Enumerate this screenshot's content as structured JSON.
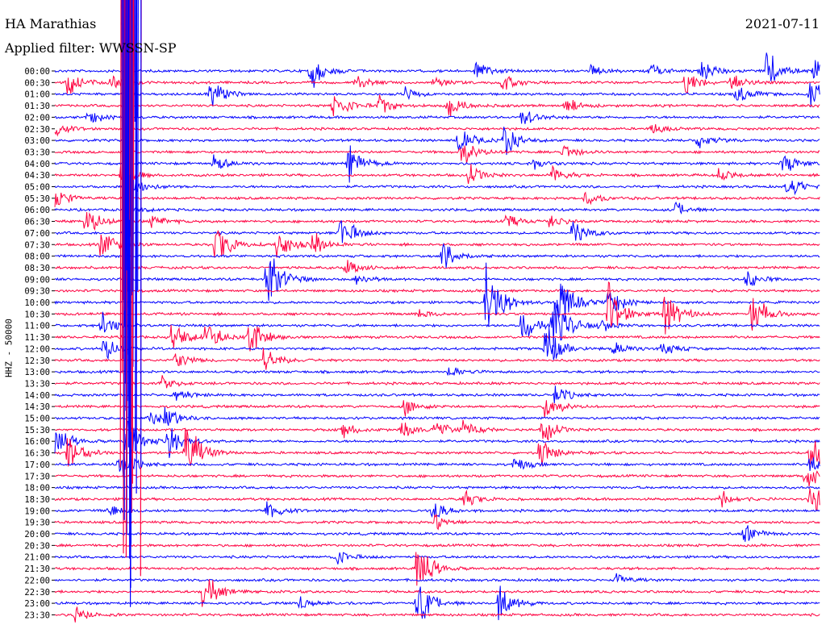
{
  "header": {
    "station": "HA Marathias",
    "filter": "Applied filter: WWSSN-SP",
    "date": "2021-07-11"
  },
  "axis": {
    "ylabel": "HHZ - 50000"
  },
  "colors": {
    "blue": "#0000ff",
    "red": "#ff0040",
    "axis": "#000000",
    "background": "#ffffff"
  },
  "chart_data": {
    "type": "line",
    "title": "HA Marathias",
    "subtitle": "Applied filter: WWSSN-SP",
    "date": "2021-07-11",
    "ylabel": "HHZ - 50000",
    "rows": [
      "00:00",
      "00:30",
      "01:00",
      "01:30",
      "02:00",
      "02:30",
      "03:00",
      "03:30",
      "04:00",
      "04:30",
      "05:00",
      "05:30",
      "06:00",
      "06:30",
      "07:00",
      "07:30",
      "08:00",
      "08:30",
      "09:00",
      "09:30",
      "10:00",
      "10:30",
      "11:00",
      "11:30",
      "12:00",
      "12:30",
      "13:00",
      "13:30",
      "14:00",
      "14:30",
      "15:00",
      "15:30",
      "16:00",
      "16:30",
      "17:00",
      "17:30",
      "18:00",
      "18:30",
      "19:00",
      "19:30",
      "20:00",
      "20:30",
      "21:00",
      "21:30",
      "22:00",
      "22:30",
      "23:00",
      "23:30"
    ],
    "minutes_per_row": 30,
    "row_colors": [
      "blue",
      "red"
    ],
    "events": [
      {
        "row": 0,
        "minute": 10,
        "amp": 30
      },
      {
        "row": 0,
        "minute": 16.5,
        "amp": 14
      },
      {
        "row": 0,
        "minute": 21,
        "amp": 9
      },
      {
        "row": 0,
        "minute": 25.3,
        "amp": 22
      },
      {
        "row": 0,
        "minute": 27.9,
        "amp": 30
      },
      {
        "row": 0,
        "minute": 23.3,
        "amp": 10
      },
      {
        "row": 0,
        "minute": 29.7,
        "amp": 20
      },
      {
        "row": 1,
        "minute": 0.5,
        "amp": 20
      },
      {
        "row": 1,
        "minute": 2.2,
        "amp": 8
      },
      {
        "row": 1,
        "minute": 11.8,
        "amp": 10
      },
      {
        "row": 1,
        "minute": 14.8,
        "amp": 9
      },
      {
        "row": 1,
        "minute": 17.5,
        "amp": 14
      },
      {
        "row": 1,
        "minute": 24.7,
        "amp": 16
      },
      {
        "row": 1,
        "minute": 26.5,
        "amp": 12
      },
      {
        "row": 2,
        "minute": 6.1,
        "amp": 22
      },
      {
        "row": 2,
        "minute": 13.7,
        "amp": 10
      },
      {
        "row": 2,
        "minute": 26.7,
        "amp": 20
      },
      {
        "row": 2,
        "minute": 29.6,
        "amp": 28
      },
      {
        "row": 3,
        "minute": 10.9,
        "amp": 25
      },
      {
        "row": 3,
        "minute": 12.7,
        "amp": 14
      },
      {
        "row": 3,
        "minute": 15.4,
        "amp": 18
      },
      {
        "row": 3,
        "minute": 20,
        "amp": 12
      },
      {
        "row": 4,
        "minute": 1.3,
        "amp": 12
      },
      {
        "row": 4,
        "minute": 18.3,
        "amp": 14
      },
      {
        "row": 5,
        "minute": 0,
        "amp": 10
      },
      {
        "row": 5,
        "minute": 23.4,
        "amp": 8
      },
      {
        "row": 6,
        "minute": 15.8,
        "amp": 20
      },
      {
        "row": 6,
        "minute": 17.6,
        "amp": 25
      },
      {
        "row": 6,
        "minute": 25.2,
        "amp": 12
      },
      {
        "row": 7,
        "minute": 15.9,
        "amp": 22
      },
      {
        "row": 7,
        "minute": 19.9,
        "amp": 14
      },
      {
        "row": 8,
        "minute": 6.2,
        "amp": 14
      },
      {
        "row": 8,
        "minute": 11.5,
        "amp": 28
      },
      {
        "row": 8,
        "minute": 18.8,
        "amp": 10
      },
      {
        "row": 8,
        "minute": 28.5,
        "amp": 20
      },
      {
        "row": 9,
        "minute": 2.6,
        "amp": 16
      },
      {
        "row": 9,
        "minute": 16.2,
        "amp": 18
      },
      {
        "row": 9,
        "minute": 19.5,
        "amp": 12
      },
      {
        "row": 9,
        "minute": 26,
        "amp": 10
      },
      {
        "row": 10,
        "minute": 2.8,
        "amp": 26
      },
      {
        "row": 10,
        "minute": 28.7,
        "amp": 20
      },
      {
        "row": 11,
        "minute": 0,
        "amp": 15
      },
      {
        "row": 11,
        "minute": 20.8,
        "amp": 12
      },
      {
        "row": 12,
        "minute": 2.8,
        "amp": 10
      },
      {
        "row": 12,
        "minute": 24.3,
        "amp": 12
      },
      {
        "row": 13,
        "minute": 1.2,
        "amp": 24
      },
      {
        "row": 13,
        "minute": 3.8,
        "amp": 10
      },
      {
        "row": 13,
        "minute": 17.7,
        "amp": 10
      },
      {
        "row": 13,
        "minute": 19.4,
        "amp": 12
      },
      {
        "row": 14,
        "minute": 11.2,
        "amp": 28
      },
      {
        "row": 14,
        "minute": 20.3,
        "amp": 22
      },
      {
        "row": 15,
        "minute": 1.8,
        "amp": 30
      },
      {
        "row": 15,
        "minute": 6.3,
        "amp": 35
      },
      {
        "row": 15,
        "minute": 8.7,
        "amp": 26
      },
      {
        "row": 15,
        "minute": 10.1,
        "amp": 20
      },
      {
        "row": 16,
        "minute": 15.2,
        "amp": 28
      },
      {
        "row": 17,
        "minute": 11.4,
        "amp": 12
      },
      {
        "row": 18,
        "minute": 8.3,
        "amp": 60
      },
      {
        "row": 18,
        "minute": 11.8,
        "amp": 10
      },
      {
        "row": 18,
        "minute": 27.1,
        "amp": 14
      },
      {
        "row": 20,
        "minute": 16.9,
        "amp": 80
      },
      {
        "row": 20,
        "minute": 19.7,
        "amp": 50
      },
      {
        "row": 20,
        "minute": 21.7,
        "amp": 25
      },
      {
        "row": 21,
        "minute": 14.2,
        "amp": 8
      },
      {
        "row": 21,
        "minute": 21.7,
        "amp": 45
      },
      {
        "row": 21,
        "minute": 23.9,
        "amp": 40
      },
      {
        "row": 21,
        "minute": 27.3,
        "amp": 35
      },
      {
        "row": 22,
        "minute": 1.8,
        "amp": 20
      },
      {
        "row": 22,
        "minute": 18.3,
        "amp": 25
      },
      {
        "row": 22,
        "minute": 19.5,
        "amp": 55
      },
      {
        "row": 22,
        "minute": 21.3,
        "amp": 12
      },
      {
        "row": 23,
        "minute": 4.6,
        "amp": 30
      },
      {
        "row": 23,
        "minute": 5.9,
        "amp": 26
      },
      {
        "row": 23,
        "minute": 7.6,
        "amp": 30
      },
      {
        "row": 24,
        "minute": 1.9,
        "amp": 20
      },
      {
        "row": 24,
        "minute": 19.2,
        "amp": 40
      },
      {
        "row": 24,
        "minute": 21.9,
        "amp": 12
      },
      {
        "row": 24,
        "minute": 23.8,
        "amp": 10
      },
      {
        "row": 25,
        "minute": 4.7,
        "amp": 15
      },
      {
        "row": 25,
        "minute": 8.2,
        "amp": 22
      },
      {
        "row": 26,
        "minute": 15.4,
        "amp": 10
      },
      {
        "row": 27,
        "minute": 4.2,
        "amp": 10
      },
      {
        "row": 28,
        "minute": 4.7,
        "amp": 10
      },
      {
        "row": 28,
        "minute": 19.6,
        "amp": 14
      },
      {
        "row": 29,
        "minute": 13.7,
        "amp": 14
      },
      {
        "row": 29,
        "minute": 19.2,
        "amp": 20
      },
      {
        "row": 30,
        "minute": 4.3,
        "amp": 20
      },
      {
        "row": 30,
        "minute": 3.7,
        "amp": 16
      },
      {
        "row": 31,
        "minute": 11.3,
        "amp": 12
      },
      {
        "row": 31,
        "minute": 13.6,
        "amp": 12
      },
      {
        "row": 31,
        "minute": 14.9,
        "amp": 14
      },
      {
        "row": 31,
        "minute": 16,
        "amp": 12
      },
      {
        "row": 31,
        "minute": 19.1,
        "amp": 20
      },
      {
        "row": 32,
        "minute": 0,
        "amp": 28
      },
      {
        "row": 32,
        "minute": 2.8,
        "amp": 35
      },
      {
        "row": 32,
        "minute": 4.4,
        "amp": 30
      },
      {
        "row": 33,
        "minute": 0.5,
        "amp": 30
      },
      {
        "row": 33,
        "minute": 5.1,
        "amp": 55
      },
      {
        "row": 33,
        "minute": 19,
        "amp": 22
      },
      {
        "row": 33,
        "minute": 29.6,
        "amp": 35
      },
      {
        "row": 34,
        "minute": 2.5,
        "amp": 26
      },
      {
        "row": 34,
        "minute": 18,
        "amp": 12
      },
      {
        "row": 34,
        "minute": 29.6,
        "amp": 15
      },
      {
        "row": 35,
        "minute": 29.4,
        "amp": 20
      },
      {
        "row": 37,
        "minute": 16,
        "amp": 14
      },
      {
        "row": 37,
        "minute": 26.1,
        "amp": 12
      },
      {
        "row": 37,
        "minute": 29.6,
        "amp": 35
      },
      {
        "row": 38,
        "minute": 2.1,
        "amp": 10
      },
      {
        "row": 38,
        "minute": 8.3,
        "amp": 14
      },
      {
        "row": 38,
        "minute": 14.8,
        "amp": 16
      },
      {
        "row": 39,
        "minute": 14.9,
        "amp": 14
      },
      {
        "row": 40,
        "minute": 27,
        "amp": 16
      },
      {
        "row": 42,
        "minute": 11,
        "amp": 12
      },
      {
        "row": 43,
        "minute": 14.2,
        "amp": 45
      },
      {
        "row": 44,
        "minute": 22,
        "amp": 10
      },
      {
        "row": 45,
        "minute": 5.8,
        "amp": 32
      },
      {
        "row": 46,
        "minute": 9.6,
        "amp": 10
      },
      {
        "row": 46,
        "minute": 14.2,
        "amp": 40
      },
      {
        "row": 46,
        "minute": 17.4,
        "amp": 32
      },
      {
        "row": 47,
        "minute": 0.8,
        "amp": 12
      }
    ],
    "mainshock": {
      "row": 0,
      "minute": 2.8
    }
  }
}
